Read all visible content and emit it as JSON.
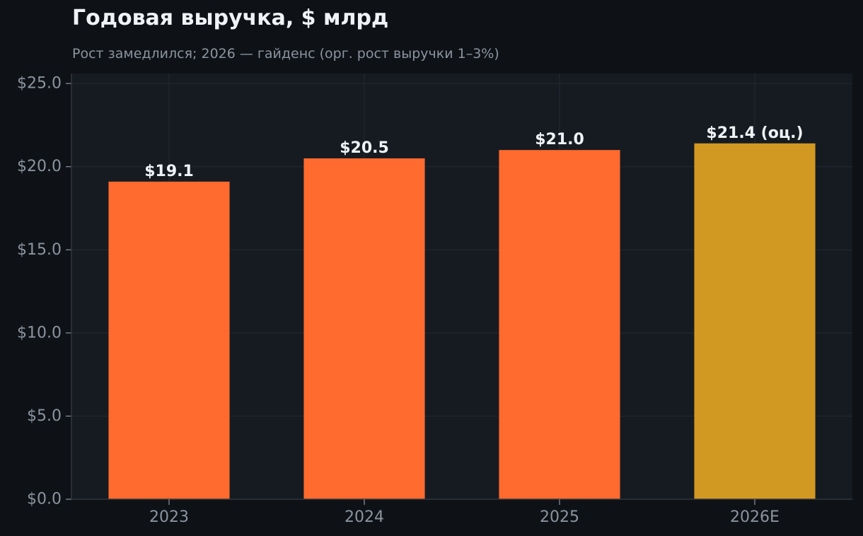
{
  "chart_data": {
    "type": "bar",
    "title": "Годовая выручка, $ млрд",
    "subtitle": "Рост замедлился; 2026 — гайденс (орг. рост выручки 1–3%)",
    "categories": [
      "2023",
      "2024",
      "2025",
      "2026E"
    ],
    "values": [
      19.1,
      20.5,
      21.0,
      21.4
    ],
    "value_labels": [
      "$19.1",
      "$20.5",
      "$21.0",
      "$21.4 (оц.)"
    ],
    "bar_colors": [
      "#ff6a2e",
      "#ff6a2e",
      "#ff6a2e",
      "#d29922"
    ],
    "ylim": [
      0,
      25.6
    ],
    "yticks": [
      0,
      5,
      10,
      15,
      20,
      25
    ],
    "ytick_labels": [
      "$0.0",
      "$5.0",
      "$10.0",
      "$15.0",
      "$20.0",
      "$25.0"
    ],
    "xlabel": "",
    "ylabel": "",
    "grid": true,
    "colors": {
      "background": "#0e1217",
      "plot_background": "#161b22",
      "grid": "#242a33",
      "axis": "#30363d"
    }
  }
}
